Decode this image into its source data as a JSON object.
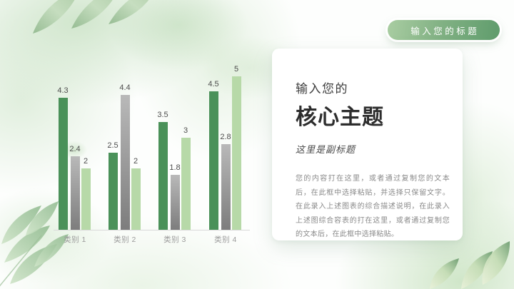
{
  "badge": {
    "label": "输入您的标题"
  },
  "card": {
    "title_small": "输入您的",
    "title_big": "核心主题",
    "subtitle": "这里是副标题",
    "body": "您的内容打在这里，或者通过复制您的文本后，在此框中选择粘贴，并选择只保留文字。在此录入上述图表的综合描述说明，在此录入上述图综合容表的打在这里，或者通过复制您的文本后，在此框中选择粘贴。"
  },
  "chart_data": {
    "type": "bar",
    "title": "",
    "xlabel": "",
    "ylabel": "",
    "categories": [
      "类别 1",
      "类别 2",
      "类别 3",
      "类别 4"
    ],
    "series": [
      {
        "name": "series-1-dark-green",
        "color": "#4a9159",
        "values": [
          4.3,
          2.5,
          3.5,
          4.5
        ]
      },
      {
        "name": "series-2-gray",
        "color_top": "#b9b9b9",
        "color_bottom": "#7d7d7d",
        "values": [
          2.4,
          4.4,
          1.8,
          2.8
        ]
      },
      {
        "name": "series-3-light-green",
        "color": "#b7d9a8",
        "values": [
          2,
          2,
          3,
          5
        ]
      }
    ],
    "ylim": [
      0,
      5
    ],
    "grid": false,
    "legend_position": "none",
    "value_labels": true
  },
  "colors": {
    "accent_dark_green": "#4a9159",
    "accent_light_green": "#b7d9a8",
    "bar_gray_top": "#b9b9b9",
    "bar_gray_bottom": "#7d7d7d",
    "value_label": "#4d4d4d",
    "category_label": "#9b9b9b",
    "axis_line": "#d9d9d9",
    "badge_gradient_start": "#a9cda2",
    "badge_gradient_end": "#5f9c6c"
  }
}
